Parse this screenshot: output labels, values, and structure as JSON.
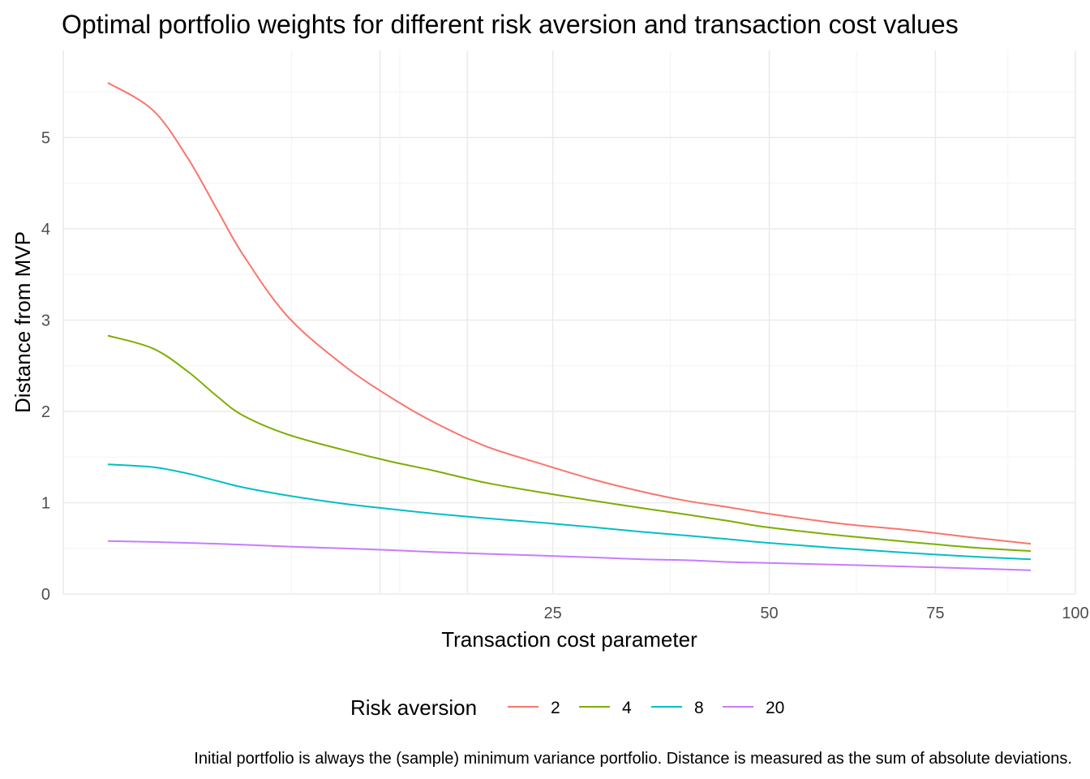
{
  "chart_data": {
    "type": "line",
    "title": "Optimal portfolio weights for different risk aversion and transaction cost values",
    "xlabel": "Transaction cost parameter",
    "ylabel": "Distance from MVP",
    "caption": "Initial portfolio is always the (sample) minimum variance portfolio. Distance is measured as the sum of absolute deviations.",
    "x_scale": "sqrt",
    "xlim": [
      0.1,
      100
    ],
    "ylim": [
      0,
      5.6
    ],
    "x_ticks": [
      25,
      50,
      75,
      100
    ],
    "y_ticks": [
      0,
      1,
      2,
      3,
      4,
      5
    ],
    "x_tick_labels": [
      "25",
      "50",
      "75",
      "100"
    ],
    "y_tick_labels": [
      "0",
      "1",
      "2",
      "3",
      "4",
      "5"
    ],
    "grid": true,
    "legend": {
      "title": "Risk aversion",
      "position": "bottom"
    },
    "series": [
      {
        "name": "2",
        "color": "#F8766D",
        "x": [
          1,
          2,
          3,
          4,
          5,
          7,
          10,
          13,
          16,
          20,
          25,
          30,
          35,
          40,
          45,
          50,
          60,
          70,
          80,
          90
        ],
        "y": [
          5.6,
          5.3,
          4.78,
          4.22,
          3.73,
          3.05,
          2.51,
          2.15,
          1.88,
          1.62,
          1.42,
          1.25,
          1.12,
          1.02,
          0.95,
          0.88,
          0.77,
          0.7,
          0.62,
          0.55
        ]
      },
      {
        "name": "4",
        "color": "#7CAE00",
        "x": [
          1,
          2,
          3,
          4,
          5,
          7,
          10,
          13,
          16,
          20,
          25,
          30,
          35,
          40,
          45,
          50,
          60,
          70,
          80,
          90
        ],
        "y": [
          2.83,
          2.69,
          2.44,
          2.17,
          1.96,
          1.75,
          1.58,
          1.45,
          1.35,
          1.22,
          1.11,
          1.02,
          0.94,
          0.87,
          0.8,
          0.73,
          0.64,
          0.57,
          0.51,
          0.47
        ]
      },
      {
        "name": "8",
        "color": "#00BFC4",
        "x": [
          1,
          2,
          3,
          4,
          5,
          7,
          10,
          13,
          16,
          20,
          25,
          30,
          35,
          40,
          45,
          50,
          60,
          70,
          80,
          90
        ],
        "y": [
          1.42,
          1.39,
          1.32,
          1.24,
          1.17,
          1.08,
          0.99,
          0.93,
          0.88,
          0.83,
          0.78,
          0.73,
          0.68,
          0.64,
          0.6,
          0.56,
          0.5,
          0.45,
          0.41,
          0.38
        ]
      },
      {
        "name": "20",
        "color": "#C77CFF",
        "x": [
          1,
          2,
          3,
          4,
          5,
          7,
          10,
          13,
          16,
          20,
          25,
          30,
          35,
          40,
          45,
          50,
          60,
          70,
          80,
          90
        ],
        "y": [
          0.58,
          0.57,
          0.56,
          0.55,
          0.54,
          0.52,
          0.5,
          0.48,
          0.46,
          0.44,
          0.42,
          0.4,
          0.38,
          0.37,
          0.35,
          0.34,
          0.32,
          0.3,
          0.28,
          0.26
        ]
      }
    ]
  }
}
